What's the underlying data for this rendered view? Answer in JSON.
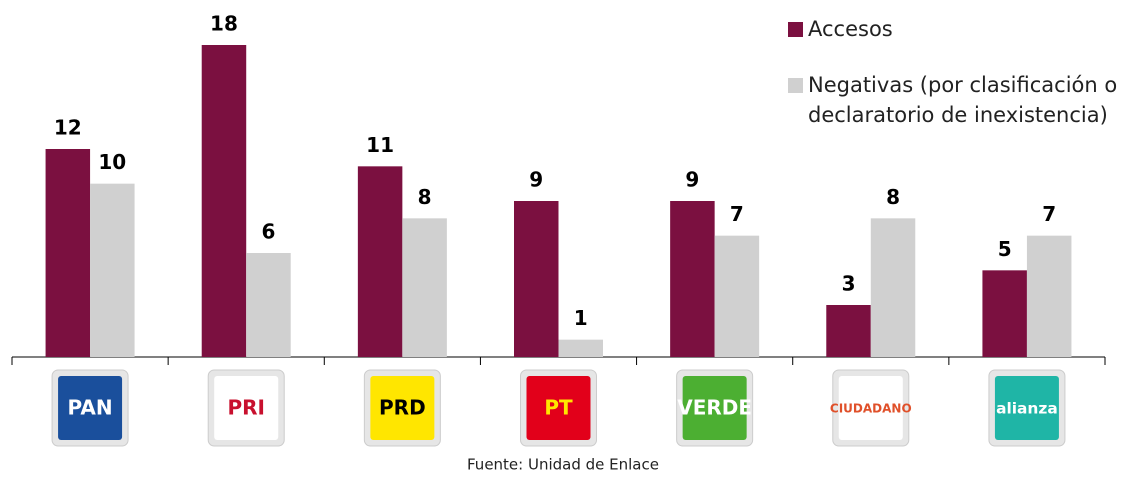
{
  "chart_data": {
    "type": "bar",
    "categories": [
      "PAN",
      "PRI",
      "PRD",
      "PT",
      "VERDE",
      "CIUDADANO",
      "alianza"
    ],
    "series": [
      {
        "name": "Accesos",
        "color": "#7b1040",
        "values": [
          12,
          18,
          11,
          9,
          9,
          3,
          5
        ]
      },
      {
        "name": "Negativas (por clasificación o declaratorio de inexistencia)",
        "color": "#d0d0d0",
        "values": [
          10,
          6,
          8,
          1,
          7,
          8,
          7
        ]
      }
    ],
    "source": "Fuente: Unidad de Enlace"
  }
}
